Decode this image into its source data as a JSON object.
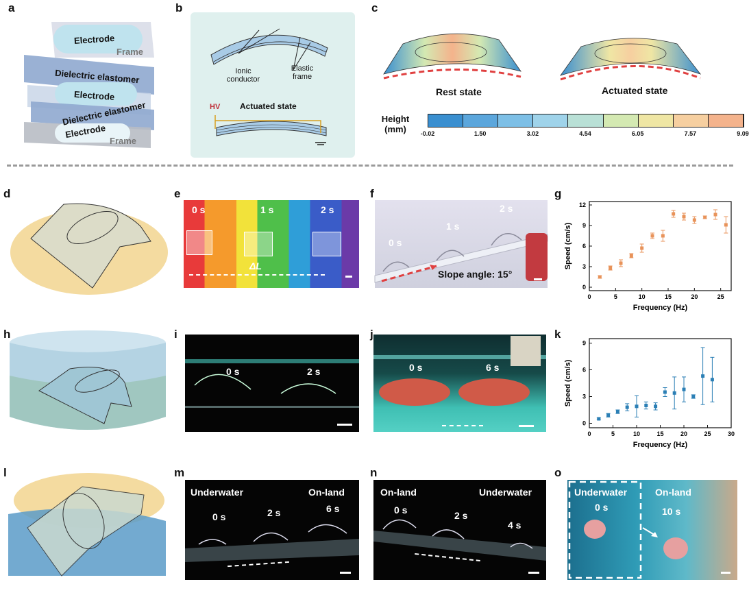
{
  "panel_labels": [
    "a",
    "b",
    "c",
    "d",
    "e",
    "f",
    "g",
    "h",
    "i",
    "j",
    "k",
    "l",
    "m",
    "n",
    "o"
  ],
  "panel_a": {
    "layers": [
      "Electrode",
      "Dielectric elastomer",
      "Electrode",
      "Dielectric elastomer",
      "Electrode"
    ],
    "frame_labels": [
      "Frame",
      "Frame"
    ]
  },
  "panel_b": {
    "labels": [
      "Ionic conductor",
      "Elastic frame",
      "Actuated state",
      "HV"
    ]
  },
  "panel_c": {
    "rest_label": "Rest state",
    "actuated_label": "Actuated state",
    "colorbar_title": "Height (mm)",
    "colorbar_ticks": [
      "-0.02",
      "1.50",
      "3.02",
      "4.54",
      "6.05",
      "7.57",
      "9.09"
    ],
    "colors": [
      "#3a8fd0",
      "#5ba6dc",
      "#7dbfe6",
      "#9fd3ea",
      "#b9e0d6",
      "#d4e9b2",
      "#efe6a4",
      "#f6cfa0",
      "#f4b38c"
    ]
  },
  "panel_e": {
    "times": [
      "0 s",
      "1 s",
      "2 s"
    ],
    "delta_label": "ΔL"
  },
  "panel_f": {
    "times": [
      "0 s",
      "1 s",
      "2 s"
    ],
    "slope_label": "Slope angle: 15°"
  },
  "panel_i": {
    "times": [
      "0 s",
      "2 s"
    ]
  },
  "panel_j": {
    "times": [
      "0 s",
      "6 s"
    ]
  },
  "panel_m": {
    "left_label": "Underwater",
    "right_label": "On-land",
    "times": [
      "0 s",
      "2 s",
      "6 s"
    ]
  },
  "panel_n": {
    "left_label": "On-land",
    "right_label": "Underwater",
    "times": [
      "0 s",
      "2 s",
      "4 s"
    ]
  },
  "panel_o": {
    "left_label": "Underwater",
    "right_label": "On-land",
    "times": [
      "0 s",
      "10 s"
    ]
  },
  "chart_data": [
    {
      "panel": "g",
      "type": "scatter",
      "xlabel": "Frequency (Hz)",
      "ylabel": "Speed (cm/s)",
      "xlim": [
        0,
        27
      ],
      "ylim": [
        -0.5,
        12.5
      ],
      "xticks": [
        0,
        5,
        10,
        15,
        20,
        25
      ],
      "yticks": [
        0,
        3,
        6,
        9,
        12
      ],
      "color": "#e8935a",
      "x": [
        2,
        4,
        6,
        8,
        10,
        12,
        14,
        16,
        18,
        20,
        22,
        24,
        26
      ],
      "y": [
        1.5,
        2.8,
        3.5,
        4.6,
        5.7,
        7.5,
        7.5,
        10.7,
        10.3,
        9.8,
        10.2,
        10.6,
        9.1
      ],
      "err": [
        0.2,
        0.3,
        0.5,
        0.3,
        0.6,
        0.4,
        0.8,
        0.5,
        0.5,
        0.5,
        0.2,
        0.7,
        1.2
      ]
    },
    {
      "panel": "k",
      "type": "scatter",
      "xlabel": "Frequency (Hz)",
      "ylabel": "Speed (cm/s)",
      "xlim": [
        0,
        30
      ],
      "ylim": [
        -0.5,
        9.5
      ],
      "xticks": [
        0,
        5,
        10,
        15,
        20,
        25,
        30
      ],
      "yticks": [
        0,
        3,
        6,
        9
      ],
      "color": "#2b7fb5",
      "x": [
        2,
        4,
        6,
        8,
        10,
        12,
        14,
        16,
        18,
        20,
        22,
        24,
        26
      ],
      "y": [
        0.5,
        0.9,
        1.3,
        1.8,
        1.9,
        2.0,
        1.9,
        3.5,
        3.4,
        3.8,
        3.0,
        5.3,
        4.9
      ],
      "err": [
        0.1,
        0.2,
        0.2,
        0.4,
        1.2,
        0.4,
        0.4,
        0.5,
        1.8,
        1.4,
        0.2,
        3.2,
        2.5
      ]
    }
  ]
}
